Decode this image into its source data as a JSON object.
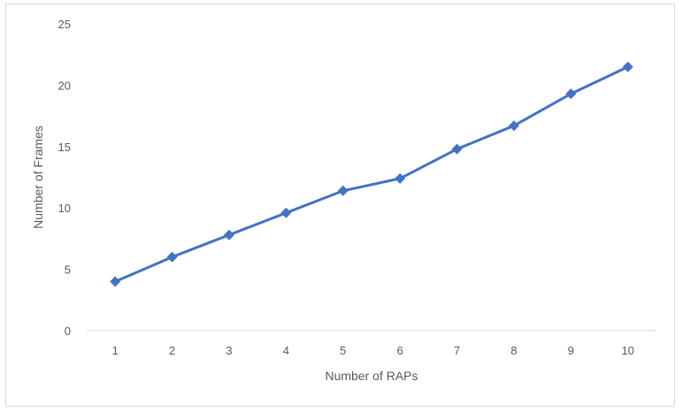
{
  "chart_data": {
    "type": "line",
    "xlabel": "Number of RAPs",
    "ylabel": "Number of Frames",
    "categories": [
      "1",
      "2",
      "3",
      "4",
      "5",
      "6",
      "7",
      "8",
      "9",
      "10"
    ],
    "series": [
      {
        "values": [
          4,
          6,
          7.8,
          9.6,
          11.4,
          12.4,
          14.8,
          16.7,
          19.3,
          21.5
        ],
        "color": "#4472c4",
        "marker": "diamond"
      }
    ],
    "ylim": [
      0,
      25
    ],
    "yticks": [
      0,
      5,
      10,
      15,
      20,
      25
    ],
    "grid": false,
    "legend": "none"
  }
}
